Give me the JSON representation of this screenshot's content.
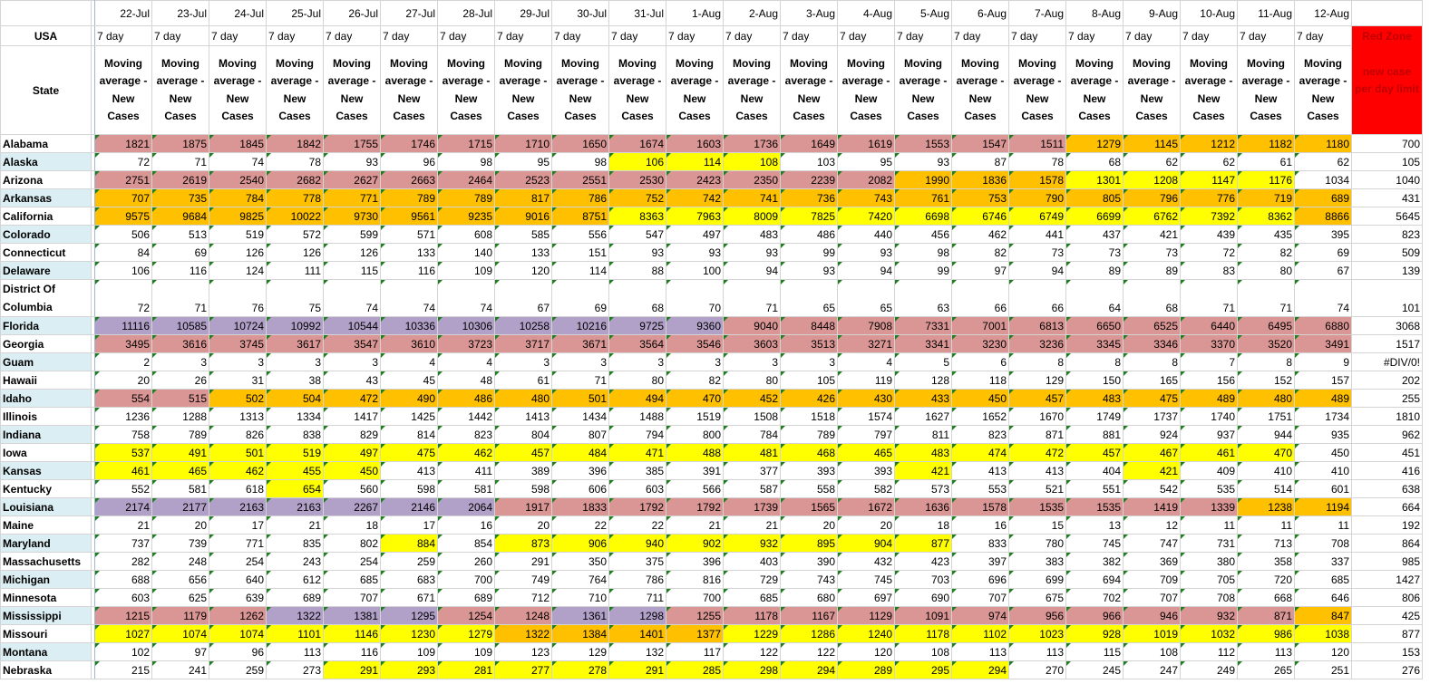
{
  "palette": {
    "P": "#da9694",
    "O": "#ffc000",
    "Y": "#ffff00",
    "U": "#b1a0c7",
    "W": "#ffffff"
  },
  "header": {
    "usa_label": "USA",
    "state_label": "State",
    "dates": [
      "22-Jul",
      "23-Jul",
      "24-Jul",
      "25-Jul",
      "26-Jul",
      "27-Jul",
      "28-Jul",
      "29-Jul",
      "30-Jul",
      "31-Jul",
      "1-Aug",
      "2-Aug",
      "3-Aug",
      "4-Aug",
      "5-Aug",
      "6-Aug",
      "7-Aug",
      "8-Aug",
      "9-Aug",
      "10-Aug",
      "11-Aug",
      "12-Aug"
    ],
    "period_label": "7 day",
    "metric_label": "Moving average - New Cases",
    "red_zone_title": "Red Zone",
    "red_zone_label": "new case per day limit"
  },
  "rows": [
    {
      "state": "Alabama",
      "values": [
        1821,
        1875,
        1845,
        1842,
        1755,
        1746,
        1715,
        1710,
        1650,
        1674,
        1603,
        1736,
        1649,
        1619,
        1553,
        1547,
        1511,
        1279,
        1145,
        1212,
        1182,
        1180
      ],
      "limit": "700",
      "colors": "PPPPPPPPPPPPPPPPPOOOOO"
    },
    {
      "state": "Alaska",
      "values": [
        72,
        71,
        74,
        78,
        93,
        96,
        98,
        95,
        98,
        106,
        114,
        108,
        103,
        95,
        93,
        87,
        78,
        68,
        62,
        62,
        61,
        62
      ],
      "limit": "105",
      "colors": "WWWWWWWWWYYYWWWWWWWWWW"
    },
    {
      "state": "Arizona",
      "values": [
        2751,
        2619,
        2540,
        2682,
        2627,
        2663,
        2464,
        2523,
        2551,
        2530,
        2423,
        2350,
        2239,
        2082,
        1990,
        1836,
        1578,
        1301,
        1208,
        1147,
        1176,
        1034
      ],
      "limit": "1040",
      "colors": "PPPPPPPPPPPPPPOOOYYYYW"
    },
    {
      "state": "Arkansas",
      "values": [
        707,
        735,
        784,
        778,
        771,
        789,
        789,
        817,
        786,
        752,
        742,
        741,
        736,
        743,
        761,
        753,
        790,
        805,
        796,
        776,
        719,
        689
      ],
      "limit": "431",
      "colors": "OOOOOOOOOOOOOOOOOOOOOO"
    },
    {
      "state": "California",
      "values": [
        9575,
        9684,
        9825,
        10022,
        9730,
        9561,
        9235,
        9016,
        8751,
        8363,
        7963,
        8009,
        7825,
        7420,
        6698,
        6746,
        6749,
        6699,
        6762,
        7392,
        8362,
        8866
      ],
      "limit": "5645",
      "colors": "OOOOOOOOOYYYYYYYYYYYYO"
    },
    {
      "state": "Colorado",
      "values": [
        506,
        513,
        519,
        572,
        599,
        571,
        608,
        585,
        556,
        547,
        497,
        483,
        486,
        440,
        456,
        462,
        441,
        437,
        421,
        439,
        435,
        395
      ],
      "limit": "823",
      "colors": "WWWWWWWWWWWWWWWWWWWWWW"
    },
    {
      "state": "Connecticut",
      "values": [
        84,
        69,
        126,
        126,
        126,
        133,
        140,
        133,
        151,
        93,
        93,
        93,
        99,
        93,
        98,
        82,
        73,
        73,
        73,
        72,
        82,
        69
      ],
      "limit": "509",
      "colors": "WWWWWWWWWWWWWWWWWWWWWW"
    },
    {
      "state": "Delaware",
      "values": [
        106,
        116,
        124,
        111,
        115,
        116,
        109,
        120,
        114,
        88,
        100,
        94,
        93,
        94,
        99,
        97,
        94,
        89,
        89,
        83,
        80,
        67
      ],
      "limit": "139",
      "colors": "WWWWWWWWWWWWWWWWWWWWWW"
    },
    {
      "state": "District Of Columbia",
      "values": [
        72,
        71,
        76,
        75,
        74,
        74,
        74,
        67,
        69,
        68,
        70,
        71,
        65,
        65,
        63,
        66,
        66,
        64,
        68,
        71,
        71,
        74
      ],
      "limit": "101",
      "colors": "WWWWWWWWWWWWWWWWWWWWWW"
    },
    {
      "state": "Florida",
      "values": [
        11116,
        10585,
        10724,
        10992,
        10544,
        10336,
        10306,
        10258,
        10216,
        9725,
        9360,
        9040,
        8448,
        7908,
        7331,
        7001,
        6813,
        6650,
        6525,
        6440,
        6495,
        6880
      ],
      "limit": "3068",
      "colors": "UUUUUUUUUUUPPPPPPPPPPP"
    },
    {
      "state": "Georgia",
      "values": [
        3495,
        3616,
        3745,
        3617,
        3547,
        3610,
        3723,
        3717,
        3671,
        3564,
        3546,
        3603,
        3513,
        3271,
        3341,
        3230,
        3236,
        3345,
        3346,
        3370,
        3520,
        3491
      ],
      "limit": "1517",
      "colors": "PPPPPPPPPPPPPPPPPPPPPP"
    },
    {
      "state": "Guam",
      "values": [
        2,
        3,
        3,
        3,
        3,
        4,
        4,
        3,
        3,
        3,
        3,
        3,
        3,
        4,
        5,
        6,
        8,
        8,
        8,
        7,
        8,
        9
      ],
      "limit": "#DIV/0!",
      "colors": "WWWWWWWWWWWWWWWWWWWWWW"
    },
    {
      "state": "Hawaii",
      "values": [
        20,
        26,
        31,
        38,
        43,
        45,
        48,
        61,
        71,
        80,
        82,
        80,
        105,
        119,
        128,
        118,
        129,
        150,
        165,
        156,
        152,
        157
      ],
      "limit": "202",
      "colors": "WWWWWWWWWWWWWWWWWWWWWW"
    },
    {
      "state": "Idaho",
      "values": [
        554,
        515,
        502,
        504,
        472,
        490,
        486,
        480,
        501,
        494,
        470,
        452,
        426,
        430,
        433,
        450,
        457,
        483,
        475,
        489,
        480,
        489
      ],
      "limit": "255",
      "colors": "PPOOOOOOOOOOOOOOOOOOOO"
    },
    {
      "state": "Illinois",
      "values": [
        1236,
        1288,
        1313,
        1334,
        1417,
        1425,
        1442,
        1413,
        1434,
        1488,
        1519,
        1508,
        1518,
        1574,
        1627,
        1652,
        1670,
        1749,
        1737,
        1740,
        1751,
        1734
      ],
      "limit": "1810",
      "colors": "WWWWWWWWWWWWWWWWWWWWWW"
    },
    {
      "state": "Indiana",
      "values": [
        758,
        789,
        826,
        838,
        829,
        814,
        823,
        804,
        807,
        794,
        800,
        784,
        789,
        797,
        811,
        823,
        871,
        881,
        924,
        937,
        944,
        935
      ],
      "limit": "962",
      "colors": "WWWWWWWWWWWWWWWWWWWWWW"
    },
    {
      "state": "Iowa",
      "values": [
        537,
        491,
        501,
        519,
        497,
        475,
        462,
        457,
        484,
        471,
        488,
        481,
        468,
        465,
        483,
        474,
        472,
        457,
        467,
        461,
        470,
        450
      ],
      "limit": "451",
      "colors": "YYYYYYYYYYYYYYYYYYYYYW"
    },
    {
      "state": "Kansas",
      "values": [
        461,
        465,
        462,
        455,
        450,
        413,
        411,
        389,
        396,
        385,
        391,
        377,
        393,
        393,
        421,
        413,
        413,
        404,
        421,
        409,
        410,
        410
      ],
      "limit": "416",
      "colors": "YYYYYWWWWWWWWWYWWWYWWW"
    },
    {
      "state": "Kentucky",
      "values": [
        552,
        581,
        618,
        654,
        560,
        598,
        581,
        598,
        606,
        603,
        566,
        587,
        558,
        582,
        573,
        553,
        521,
        551,
        542,
        535,
        514,
        601
      ],
      "limit": "638",
      "colors": "WWWYWWWWWWWWWWWWWWWWWW"
    },
    {
      "state": "Louisiana",
      "values": [
        2174,
        2177,
        2163,
        2163,
        2267,
        2146,
        2064,
        1917,
        1833,
        1792,
        1792,
        1739,
        1565,
        1672,
        1636,
        1578,
        1535,
        1535,
        1419,
        1339,
        1238,
        1194
      ],
      "limit": "664",
      "colors": "UUUUUUUPPPPPPPPPPPPPOO"
    },
    {
      "state": "Maine",
      "values": [
        21,
        20,
        17,
        21,
        18,
        17,
        16,
        20,
        22,
        22,
        21,
        21,
        20,
        20,
        18,
        16,
        15,
        13,
        12,
        11,
        11,
        11
      ],
      "limit": "192",
      "colors": "WWWWWWWWWWWWWWWWWWWWWW"
    },
    {
      "state": "Maryland",
      "values": [
        737,
        739,
        771,
        835,
        802,
        884,
        854,
        873,
        906,
        940,
        902,
        932,
        895,
        904,
        877,
        833,
        780,
        745,
        747,
        731,
        713,
        708
      ],
      "limit": "864",
      "colors": "WWWWWYWYYYYYYYYWWWWWWW"
    },
    {
      "state": "Massachusetts",
      "values": [
        282,
        248,
        254,
        243,
        254,
        259,
        260,
        291,
        350,
        375,
        396,
        403,
        390,
        432,
        423,
        397,
        383,
        382,
        369,
        380,
        358,
        337
      ],
      "limit": "985",
      "colors": "WWWWWWWWWWWWWWWWWWWWWW"
    },
    {
      "state": "Michigan",
      "values": [
        688,
        656,
        640,
        612,
        685,
        683,
        700,
        749,
        764,
        786,
        816,
        729,
        743,
        745,
        703,
        696,
        699,
        694,
        709,
        705,
        720,
        685
      ],
      "limit": "1427",
      "colors": "WWWWWWWWWWWWWWWWWWWWWW"
    },
    {
      "state": "Minnesota",
      "values": [
        603,
        625,
        639,
        689,
        707,
        671,
        689,
        712,
        710,
        711,
        700,
        685,
        680,
        697,
        690,
        707,
        675,
        702,
        707,
        708,
        668,
        646
      ],
      "limit": "806",
      "colors": "WWWWWWWWWWWWWWWWWWWWWW"
    },
    {
      "state": "Mississippi",
      "values": [
        1215,
        1179,
        1262,
        1322,
        1381,
        1295,
        1254,
        1248,
        1361,
        1298,
        1255,
        1178,
        1167,
        1129,
        1091,
        974,
        956,
        966,
        946,
        932,
        871,
        847
      ],
      "limit": "425",
      "colors": "PPPUUUPPUUPPPPPPPPPPPO"
    },
    {
      "state": "Missouri",
      "values": [
        1027,
        1074,
        1074,
        1101,
        1146,
        1230,
        1279,
        1322,
        1384,
        1401,
        1377,
        1229,
        1286,
        1240,
        1178,
        1102,
        1023,
        928,
        1019,
        1032,
        986,
        1038
      ],
      "limit": "877",
      "colors": "YYYYYYYOOOOYYYYYYYYYYY"
    },
    {
      "state": "Montana",
      "values": [
        102,
        97,
        96,
        113,
        116,
        109,
        109,
        123,
        129,
        132,
        117,
        122,
        122,
        120,
        108,
        113,
        113,
        115,
        108,
        112,
        113,
        120
      ],
      "limit": "153",
      "colors": "WWWWWWWWWWWWWWWWWWWWWW"
    },
    {
      "state": "Nebraska",
      "values": [
        215,
        241,
        259,
        273,
        291,
        293,
        281,
        277,
        278,
        291,
        285,
        298,
        294,
        289,
        295,
        294,
        270,
        245,
        247,
        249,
        265,
        251
      ],
      "limit": "276",
      "colors": "WWWWYYYYYYYYYYYYWWWWWW"
    }
  ]
}
